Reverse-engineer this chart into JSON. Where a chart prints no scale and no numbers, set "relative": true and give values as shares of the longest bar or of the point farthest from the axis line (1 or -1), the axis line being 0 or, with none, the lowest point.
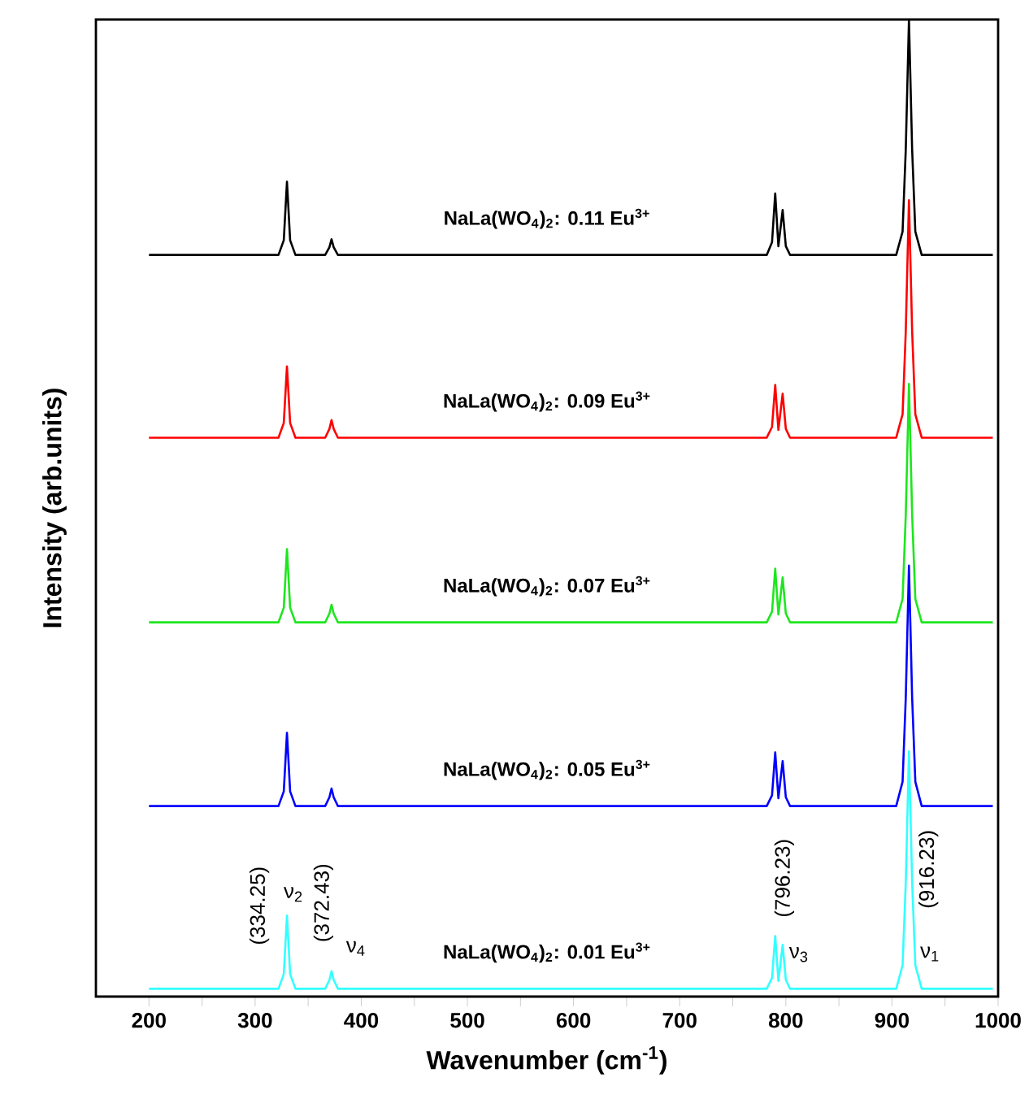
{
  "chart_data": {
    "type": "line",
    "relative": true,
    "xlabel": "Wavenumber (cm$^{-1}$)",
    "ylabel": "Intensity (arb.units)",
    "xlim": [
      150,
      1000
    ],
    "xticks": [
      200,
      {
        "value": 250,
        "label": null
      },
      300,
      {
        "value": 350,
        "label": null
      },
      400,
      {
        "value": 450,
        "label": null
      },
      500,
      {
        "value": 550,
        "label": null
      },
      600,
      {
        "value": 650,
        "label": null
      },
      700,
      {
        "value": 750,
        "label": null
      },
      800,
      {
        "value": 850,
        "label": null
      },
      900,
      {
        "value": 950,
        "label": null
      },
      1000
    ],
    "x": [
      200,
      322,
      327,
      330,
      333,
      338,
      366,
      370,
      372,
      374,
      378,
      782,
      787,
      790,
      793,
      797,
      800,
      804,
      904,
      910,
      913,
      916,
      919,
      922,
      928,
      995
    ],
    "legend": false,
    "grid": false,
    "marker": "none",
    "line_style": "solid",
    "series": [
      {
        "name": "NaLa(WO$_{4}$)$_{2}$: 0.11 Eu$^{3+}$",
        "color": "#000000",
        "values": [
          0.759,
          0.759,
          0.774,
          0.834,
          0.774,
          0.759,
          0.759,
          0.767,
          0.775,
          0.767,
          0.759,
          0.759,
          0.772,
          0.822,
          0.768,
          0.805,
          0.768,
          0.759,
          0.759,
          0.783,
          0.867,
          1.0,
          0.867,
          0.783,
          0.759,
          0.759
        ]
      },
      {
        "name": "NaLa(WO$_{4}$)$_{2}$: 0.09 Eu$^{3+}$",
        "color": "#ff0000",
        "values": [
          0.572,
          0.572,
          0.587,
          0.645,
          0.587,
          0.572,
          0.572,
          0.581,
          0.59,
          0.581,
          0.572,
          0.572,
          0.583,
          0.626,
          0.58,
          0.617,
          0.581,
          0.572,
          0.572,
          0.596,
          0.681,
          0.815,
          0.681,
          0.596,
          0.572,
          0.572
        ]
      },
      {
        "name": "NaLa(WO$_{4}$)$_{2}$: 0.07 Eu$^{3+}$",
        "color": "#1ee61e",
        "values": [
          0.383,
          0.383,
          0.398,
          0.458,
          0.398,
          0.383,
          0.383,
          0.392,
          0.401,
          0.392,
          0.383,
          0.383,
          0.394,
          0.438,
          0.391,
          0.429,
          0.392,
          0.383,
          0.383,
          0.407,
          0.493,
          0.627,
          0.493,
          0.407,
          0.383,
          0.383
        ]
      },
      {
        "name": "NaLa(WO$_{4}$)$_{2}$: 0.05 Eu$^{3+}$",
        "color": "#0000ff",
        "values": [
          0.195,
          0.195,
          0.21,
          0.27,
          0.21,
          0.195,
          0.195,
          0.204,
          0.213,
          0.204,
          0.195,
          0.195,
          0.206,
          0.25,
          0.203,
          0.241,
          0.204,
          0.195,
          0.195,
          0.22,
          0.306,
          0.441,
          0.306,
          0.22,
          0.195,
          0.195
        ]
      },
      {
        "name": "NaLa(WO$_{4}$)$_{2}$: 0.01 Eu$^{3+}$",
        "color": "#33ffff",
        "values": [
          0.008,
          0.008,
          0.023,
          0.083,
          0.023,
          0.008,
          0.008,
          0.017,
          0.026,
          0.017,
          0.008,
          0.008,
          0.019,
          0.062,
          0.016,
          0.053,
          0.017,
          0.008,
          0.008,
          0.032,
          0.117,
          0.251,
          0.117,
          0.032,
          0.008,
          0.008
        ]
      }
    ],
    "annotations": [
      {
        "text": "(334.25)",
        "x": 330,
        "y": 0.083
      },
      {
        "text": "ν$_{2}$",
        "x": 330,
        "y": 0.083
      },
      {
        "text": "(372.43)",
        "x": 372,
        "y": 0.026
      },
      {
        "text": "ν$_{4}$",
        "x": 372,
        "y": 0.026
      },
      {
        "text": "(796.23)",
        "x": 797,
        "y": 0.053
      },
      {
        "text": "ν$_{3}$",
        "x": 797,
        "y": 0.053
      },
      {
        "text": "(916.23)",
        "x": 919,
        "y": 0.117
      },
      {
        "text": "ν$_{1}$",
        "x": 922,
        "y": 0.032
      }
    ]
  }
}
